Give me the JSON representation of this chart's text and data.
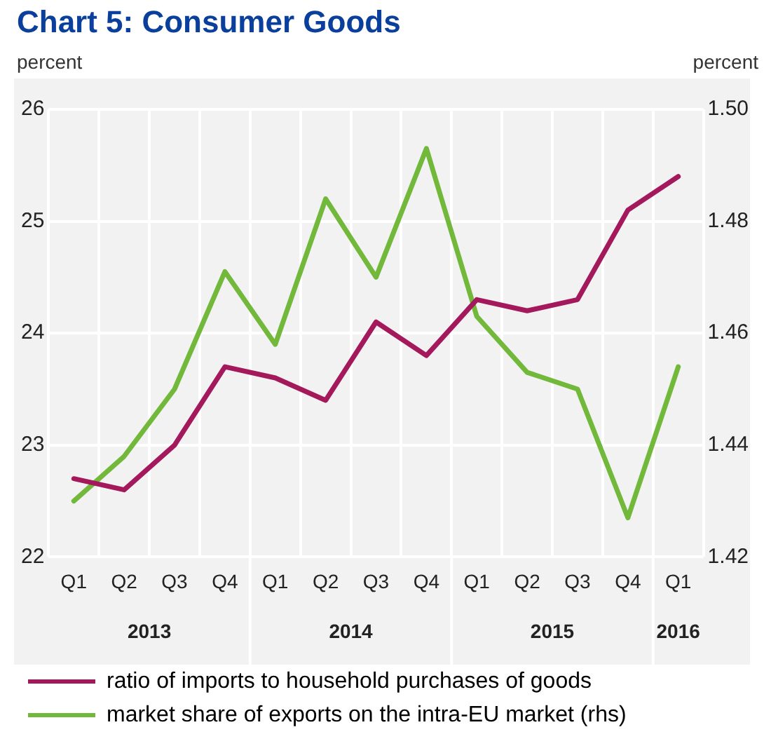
{
  "chart_data": {
    "type": "line",
    "title": "Chart 5: Consumer Goods",
    "ylabel": "percent",
    "y2label": "percent",
    "categories": [
      "Q1",
      "Q2",
      "Q3",
      "Q4",
      "Q1",
      "Q2",
      "Q3",
      "Q4",
      "Q1",
      "Q2",
      "Q3",
      "Q4",
      "Q1"
    ],
    "annotations": [
      "2013",
      "2014",
      "2015",
      "2016"
    ],
    "series": [
      {
        "name": "ratio of imports to household purchases of goods",
        "color": "#a3195b",
        "values": [
          22.7,
          22.6,
          23.0,
          23.7,
          23.6,
          23.4,
          24.1,
          23.8,
          24.3,
          24.2,
          24.3,
          25.1,
          25.4
        ]
      },
      {
        "name": "market share of exports on the intra-EU market (rhs)",
        "color": "#72b83b",
        "axis": "y2",
        "values": [
          1.43,
          1.438,
          1.45,
          1.471,
          1.458,
          1.484,
          1.47,
          1.493,
          1.463,
          1.453,
          1.45,
          1.427,
          1.454
        ]
      }
    ],
    "ylim": [
      22,
      26
    ],
    "yticks": [
      22,
      23,
      24,
      25,
      26
    ],
    "y2lim": [
      1.42,
      1.5
    ],
    "y2ticks": [
      {
        "value": 1.42,
        "label": "1.42"
      },
      {
        "value": 1.44,
        "label": "1.44"
      },
      {
        "value": 1.46,
        "label": "1.46"
      },
      {
        "value": 1.48,
        "label": "1.48"
      },
      {
        "value": 1.5,
        "label": "1.50"
      }
    ],
    "grid": true,
    "legend": "bottom",
    "marker": "none",
    "line_style": "solid"
  }
}
